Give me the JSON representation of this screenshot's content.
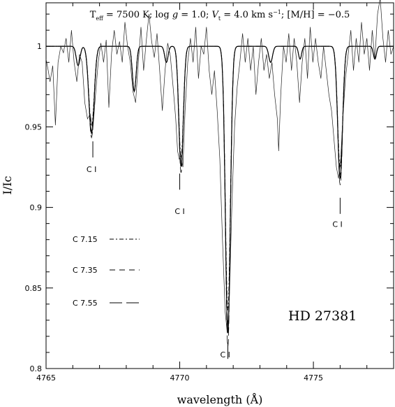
{
  "chart_data": {
    "type": "line",
    "title": "T_eff = 7500 K; log g = 1.0; V_t = 4.0 km s^-1; [M/H] = -0.5",
    "title_parts": {
      "teff": "T",
      "teff_sub": "eff",
      "teff_val": " = 7500 K; log ",
      "g": "g",
      "g_val": " = 1.0; ",
      "vt": "V",
      "vt_sub": "t",
      "vt_val": " = 4.0 km s",
      "vt_sup": "−1",
      "mh": "; [M/H] = −0.5"
    },
    "xlabel": "wavelength (Å)",
    "ylabel": "I/Ic",
    "xlim": [
      4765,
      4778
    ],
    "ylim": [
      0.8,
      1.027
    ],
    "x_ticks": [
      4765,
      4770,
      4775
    ],
    "x_tick_labels": [
      "4765",
      "4770",
      "4775"
    ],
    "y_ticks": [
      0.8,
      0.85,
      0.9,
      0.95,
      1.0
    ],
    "y_tick_labels": [
      "0.8",
      "0.85",
      "0.9",
      "0.95",
      "1"
    ],
    "star_label": "HD 27381",
    "line_labels": [
      {
        "text": "C I",
        "x": 4766.7,
        "y": 0.922
      },
      {
        "text": "C I",
        "x": 4770.0,
        "y": 0.896
      },
      {
        "text": "C I",
        "x": 4771.7,
        "y": 0.807
      },
      {
        "text": "C I",
        "x": 4775.9,
        "y": 0.888
      }
    ],
    "line_markers": [
      {
        "x": 4766.75,
        "y_top": 0.941,
        "y_bottom": 0.931
      },
      {
        "x": 4770.0,
        "y_top": 0.921,
        "y_bottom": 0.911
      },
      {
        "x": 4771.8,
        "y_top": 0.816,
        "y_bottom": 0.806
      },
      {
        "x": 4776.0,
        "y_top": 0.906,
        "y_bottom": 0.896
      }
    ],
    "legend": [
      {
        "name": "C 7.15",
        "style": "dash-dot"
      },
      {
        "name": "C 7.35",
        "style": "dashed"
      },
      {
        "name": "C 7.55",
        "style": "long-dash"
      }
    ],
    "synthetic_lines": [
      {
        "center": 4766.7,
        "depth": 0.054,
        "width": 0.14
      },
      {
        "center": 4768.3,
        "depth": 0.028,
        "width": 0.1
      },
      {
        "center": 4770.05,
        "depth": 0.075,
        "width": 0.12
      },
      {
        "center": 4771.8,
        "depth": 0.178,
        "width": 0.13
      },
      {
        "center": 4776.0,
        "depth": 0.082,
        "width": 0.13
      },
      {
        "center": 4766.2,
        "depth": 0.012,
        "width": 0.1
      },
      {
        "center": 4769.5,
        "depth": 0.01,
        "width": 0.09
      },
      {
        "center": 4773.4,
        "depth": 0.01,
        "width": 0.1
      },
      {
        "center": 4774.5,
        "depth": 0.008,
        "width": 0.08
      },
      {
        "center": 4777.3,
        "depth": 0.008,
        "width": 0.08
      }
    ],
    "observed_points": [
      [
        4765.0,
        0.992
      ],
      [
        4765.08,
        0.985
      ],
      [
        4765.15,
        0.978
      ],
      [
        4765.25,
        0.988
      ],
      [
        4765.35,
        0.951
      ],
      [
        4765.45,
        0.99
      ],
      [
        4765.55,
        1.0
      ],
      [
        4765.65,
        0.996
      ],
      [
        4765.75,
        1.005
      ],
      [
        4765.85,
        0.99
      ],
      [
        4765.95,
        1.01
      ],
      [
        4766.05,
        0.99
      ],
      [
        4766.15,
        0.978
      ],
      [
        4766.25,
        0.995
      ],
      [
        4766.35,
        0.99
      ],
      [
        4766.45,
        0.965
      ],
      [
        4766.55,
        0.955
      ],
      [
        4766.65,
        0.958
      ],
      [
        4766.75,
        0.948
      ],
      [
        4766.85,
        0.97
      ],
      [
        4766.95,
        0.99
      ],
      [
        4767.05,
        1.002
      ],
      [
        4767.15,
        0.99
      ],
      [
        4767.25,
        1.004
      ],
      [
        4767.35,
        0.962
      ],
      [
        4767.45,
        0.996
      ],
      [
        4767.55,
        1.01
      ],
      [
        4767.65,
        0.995
      ],
      [
        4767.75,
        1.003
      ],
      [
        4767.85,
        0.99
      ],
      [
        4767.95,
        1.015
      ],
      [
        4768.05,
        1.0
      ],
      [
        4768.15,
        0.99
      ],
      [
        4768.25,
        0.972
      ],
      [
        4768.35,
        0.965
      ],
      [
        4768.45,
        0.99
      ],
      [
        4768.55,
        1.012
      ],
      [
        4768.65,
        0.985
      ],
      [
        4768.75,
        1.004
      ],
      [
        4768.85,
        1.02
      ],
      [
        4768.95,
        1.003
      ],
      [
        4769.05,
        0.993
      ],
      [
        4769.15,
        1.008
      ],
      [
        4769.25,
        0.985
      ],
      [
        4769.35,
        0.96
      ],
      [
        4769.45,
        0.985
      ],
      [
        4769.55,
        1.002
      ],
      [
        4769.65,
        0.994
      ],
      [
        4769.75,
        0.975
      ],
      [
        4769.85,
        0.955
      ],
      [
        4769.92,
        0.935
      ],
      [
        4769.98,
        0.93
      ],
      [
        4770.05,
        0.932
      ],
      [
        4770.12,
        0.925
      ],
      [
        4770.2,
        0.96
      ],
      [
        4770.3,
        0.99
      ],
      [
        4770.4,
        1.005
      ],
      [
        4770.5,
        0.99
      ],
      [
        4770.6,
        1.012
      ],
      [
        4770.7,
        0.98
      ],
      [
        4770.8,
        1.0
      ],
      [
        4770.9,
        0.995
      ],
      [
        4771.0,
        1.012
      ],
      [
        4771.1,
        0.985
      ],
      [
        4771.2,
        0.97
      ],
      [
        4771.3,
        0.985
      ],
      [
        4771.4,
        0.96
      ],
      [
        4771.5,
        0.93
      ],
      [
        4771.6,
        0.88
      ],
      [
        4771.7,
        0.835
      ],
      [
        4771.78,
        0.822
      ],
      [
        4771.86,
        0.845
      ],
      [
        4771.95,
        0.9
      ],
      [
        4772.05,
        0.95
      ],
      [
        4772.15,
        0.975
      ],
      [
        4772.25,
        0.99
      ],
      [
        4772.35,
        1.008
      ],
      [
        4772.45,
        0.99
      ],
      [
        4772.55,
        1.005
      ],
      [
        4772.65,
        0.985
      ],
      [
        4772.75,
        1.0
      ],
      [
        4772.85,
        0.97
      ],
      [
        4772.95,
        0.99
      ],
      [
        4773.05,
        1.005
      ],
      [
        4773.15,
        0.985
      ],
      [
        4773.25,
        0.995
      ],
      [
        4773.35,
        0.98
      ],
      [
        4773.45,
        0.99
      ],
      [
        4773.55,
        0.97
      ],
      [
        4773.65,
        0.955
      ],
      [
        4773.7,
        0.935
      ],
      [
        4773.78,
        0.97
      ],
      [
        4773.88,
        1.0
      ],
      [
        4773.98,
        0.99
      ],
      [
        4774.08,
        1.008
      ],
      [
        4774.18,
        0.985
      ],
      [
        4774.28,
        1.005
      ],
      [
        4774.38,
        0.99
      ],
      [
        4774.48,
        0.965
      ],
      [
        4774.58,
        0.99
      ],
      [
        4774.68,
        1.005
      ],
      [
        4774.78,
        0.98
      ],
      [
        4774.88,
        1.012
      ],
      [
        4774.98,
        0.99
      ],
      [
        4775.08,
        1.005
      ],
      [
        4775.18,
        0.99
      ],
      [
        4775.28,
        0.98
      ],
      [
        4775.38,
        1.0
      ],
      [
        4775.48,
        0.985
      ],
      [
        4775.58,
        0.97
      ],
      [
        4775.68,
        0.96
      ],
      [
        4775.78,
        0.94
      ],
      [
        4775.86,
        0.925
      ],
      [
        4775.94,
        0.918
      ],
      [
        4776.02,
        0.93
      ],
      [
        4776.1,
        0.955
      ],
      [
        4776.2,
        0.98
      ],
      [
        4776.3,
        0.995
      ],
      [
        4776.4,
        1.01
      ],
      [
        4776.5,
        0.985
      ],
      [
        4776.6,
        1.005
      ],
      [
        4776.7,
        0.99
      ],
      [
        4776.8,
        1.015
      ],
      [
        4776.9,
        0.995
      ],
      [
        4777.0,
        1.005
      ],
      [
        4777.1,
        0.985
      ],
      [
        4777.2,
        1.01
      ],
      [
        4777.3,
        0.992
      ],
      [
        4777.4,
        1.02
      ],
      [
        4777.5,
        1.03
      ],
      [
        4777.6,
        1.005
      ],
      [
        4777.7,
        0.99
      ],
      [
        4777.8,
        1.01
      ],
      [
        4777.9,
        0.995
      ],
      [
        4778.0,
        1.0
      ]
    ]
  }
}
